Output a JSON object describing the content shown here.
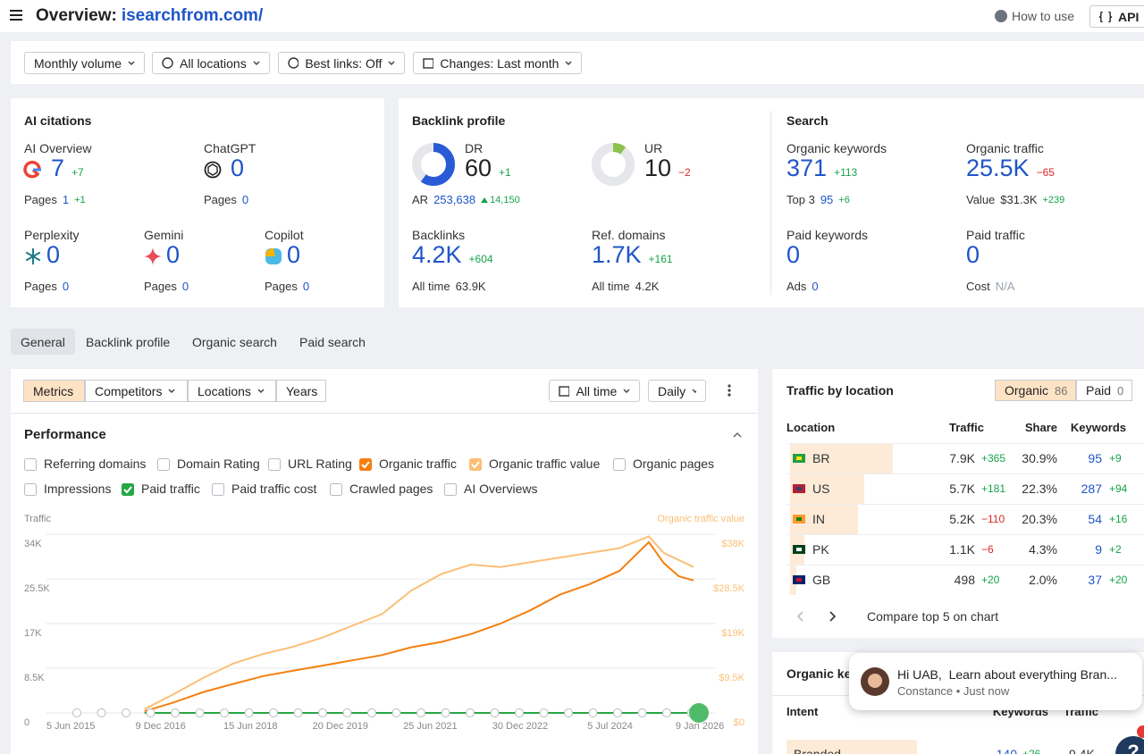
{
  "header": {
    "title": "Overview:",
    "domain": "isearchfrom.com/",
    "how_to_use": "How to use",
    "api": "API"
  },
  "filters": [
    "Monthly volume",
    "All locations",
    "Best links: Off",
    "Changes: Last month"
  ],
  "ai_citations": {
    "title": "AI citations",
    "items": [
      {
        "label": "AI Overview",
        "value": 7,
        "change": "+7",
        "sub_label": "Pages",
        "sub_value": 1,
        "sub_change": "+1"
      },
      {
        "label": "ChatGPT",
        "value": 0,
        "sub_label": "Pages",
        "sub_value": 0
      },
      {
        "label": "Perplexity",
        "value": 0,
        "sub_label": "Pages",
        "sub_value": 0
      },
      {
        "label": "Gemini",
        "value": 0,
        "sub_label": "Pages",
        "sub_value": 0
      },
      {
        "label": "Copilot",
        "value": 0,
        "sub_label": "Pages",
        "sub_value": 0
      }
    ]
  },
  "backlink_profile": {
    "title": "Backlink profile",
    "items": [
      {
        "label": "DR",
        "value": 60,
        "change": "+1",
        "sub_label": "AR",
        "sub_value": "253,638",
        "sub_change": "14,150"
      },
      {
        "label": "UR",
        "value": 10,
        "change": "−2"
      },
      {
        "label": "Backlinks",
        "value": "4.2K",
        "change": "+604",
        "sub_label": "All time",
        "sub_value": "63.9K"
      },
      {
        "label": "Ref. domains",
        "value": "1.7K",
        "change": "+161",
        "sub_label": "All time",
        "sub_value": "4.2K"
      }
    ]
  },
  "search": {
    "title": "Search",
    "items": [
      {
        "label": "Organic keywords",
        "value": 371,
        "change": "+113",
        "sub_label": "Top 3",
        "sub_value": 95,
        "sub_change": "+6"
      },
      {
        "label": "Organic traffic",
        "value": "25.5K",
        "change": "−65",
        "sub_label": "Value",
        "sub_value": "$31.3K",
        "sub_change": "+239"
      },
      {
        "label": "Paid keywords",
        "value": 0,
        "sub_label": "Ads",
        "sub_value": 0
      },
      {
        "label": "Paid traffic",
        "value": 0,
        "sub_label": "Cost",
        "sub_value": "N/A"
      }
    ]
  },
  "tabs": [
    "General",
    "Backlink profile",
    "Organic search",
    "Paid search"
  ],
  "performance": {
    "tools": [
      "Metrics",
      "Competitors",
      "Locations",
      "Years"
    ],
    "range": "All time",
    "interval": "Daily",
    "title": "Performance",
    "options": [
      "Referring domains",
      "Domain Rating",
      "URL Rating",
      "Organic pages",
      "Impressions",
      "Paid traffic cost",
      "Crawled pages",
      "AI Overviews"
    ]
  },
  "chart_data": {
    "type": "line",
    "y_label": "Traffic",
    "y2_label": "Organic traffic value",
    "x": [
      "2016-09-01",
      "2017-03-01",
      "2017-09-01",
      "2018-03-01",
      "2018-09-01",
      "2019-03-01",
      "2019-09-01",
      "2020-03-01",
      "2020-09-01",
      "2021-03-01",
      "2021-09-01",
      "2022-03-01",
      "2022-09-01",
      "2023-03-01",
      "2023-09-01",
      "2024-03-01",
      "2024-09-01",
      "2025-03-01",
      "2025-06-01",
      "2025-09-01",
      "2025-12-01"
    ],
    "xlim": [
      "2015-01-07",
      "2026-04-12"
    ],
    "xticks": [
      {
        "value": "2015-06-05",
        "label": "5 Jun 2015"
      },
      {
        "value": "2016-12-09",
        "label": "9 Dec 2016"
      },
      {
        "value": "2018-06-15",
        "label": "15 Jun 2018"
      },
      {
        "value": "2019-12-20",
        "label": "20 Dec 2019"
      },
      {
        "value": "2021-06-25",
        "label": "25 Jun 2021"
      },
      {
        "value": "2022-12-30",
        "label": "30 Dec 2022"
      },
      {
        "value": "2024-07-05",
        "label": "5 Jul 2024"
      },
      {
        "value": "2026-01-09",
        "label": "9 Jan 2026"
      }
    ],
    "ylim": [
      0,
      36000
    ],
    "yticks": [
      0,
      {
        "value": 8500,
        "label": "8.5K"
      },
      {
        "value": 17000,
        "label": "17K"
      },
      {
        "value": 25500,
        "label": "25.5K"
      },
      {
        "value": 34000,
        "label": "34K"
      }
    ],
    "y2lim": [
      0,
      40200
    ],
    "y2ticks": [
      {
        "value": 0,
        "label": "$0"
      },
      {
        "value": 9500,
        "label": "$9.5K"
      },
      {
        "value": 19000,
        "label": "$19K"
      },
      {
        "value": 28500,
        "label": "$28.5K"
      },
      {
        "value": 38000,
        "label": "$38K"
      }
    ],
    "grid": true,
    "series": [
      {
        "name": "Organic traffic",
        "color": "#f5800f",
        "values": [
          300,
          2000,
          4000,
          5500,
          7000,
          8000,
          9000,
          10000,
          11000,
          12500,
          13500,
          15000,
          17000,
          19500,
          22500,
          24500,
          27000,
          32500,
          28500,
          26000,
          25200
        ]
      },
      {
        "name": "Organic traffic value",
        "color": "#fbbf77",
        "axis": "y2",
        "values": [
          800,
          4000,
          7500,
          10500,
          12500,
          14000,
          16000,
          18500,
          21000,
          26000,
          29500,
          31500,
          31000,
          32000,
          33000,
          34000,
          35000,
          37500,
          34000,
          32500,
          31000
        ]
      },
      {
        "name": "Paid traffic",
        "color": "#27a744",
        "values": [
          0,
          0,
          0,
          0,
          0,
          0,
          0,
          0,
          0,
          0,
          0,
          0,
          0,
          0,
          0,
          0,
          0,
          0,
          0,
          0,
          0
        ]
      }
    ]
  },
  "traffic_by_location": {
    "title": "Traffic by location",
    "modes": [
      {
        "label": "Organic",
        "count": 86
      },
      {
        "label": "Paid",
        "count": 0
      }
    ],
    "columns": [
      "Location",
      "Traffic",
      "Share",
      "Keywords"
    ],
    "rows": [
      {
        "code": "BR",
        "traffic": "7.9K",
        "change": "+365",
        "share": 30.9,
        "share_label": "30.9%",
        "keywords": 95,
        "keywords_change": "+9"
      },
      {
        "code": "US",
        "traffic": "5.7K",
        "change": "+181",
        "share": 22.3,
        "share_label": "22.3%",
        "keywords": 287,
        "keywords_change": "+94"
      },
      {
        "code": "IN",
        "traffic": "5.2K",
        "change": "−110",
        "share": 20.3,
        "share_label": "20.3%",
        "keywords": 54,
        "keywords_change": "+16"
      },
      {
        "code": "PK",
        "traffic": "1.1K",
        "change": "−6",
        "share": 4.3,
        "share_label": "4.3%",
        "keywords": 9,
        "keywords_change": "+2"
      },
      {
        "code": "GB",
        "traffic": 498,
        "change": "+20",
        "share": 2.0,
        "share_label": "2.0%",
        "keywords": 37,
        "keywords_change": "+20"
      }
    ],
    "compare": "Compare top 5 on chart"
  },
  "organic_keywords": {
    "title": "Organic keywords",
    "columns": [
      "Intent",
      "Keywords",
      "Traffic"
    ],
    "rows": [
      {
        "intent": "Branded",
        "keywords": 140,
        "change": "+26",
        "traffic": "9.4K"
      }
    ]
  },
  "chat": {
    "message": "Hi UAB,  Learn about everything Bran...",
    "meta": "Constance • Just now"
  },
  "help": "?"
}
